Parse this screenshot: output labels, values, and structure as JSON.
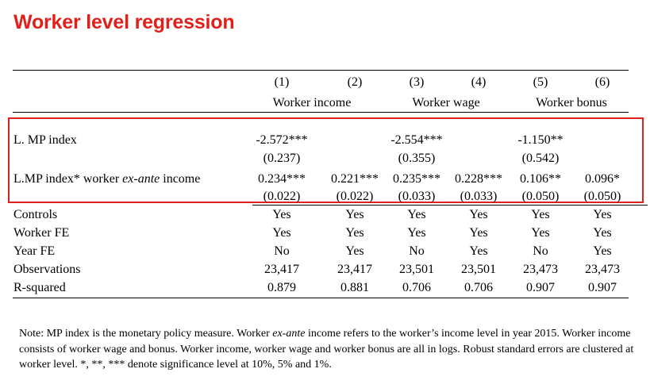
{
  "title": "Worker level regression",
  "columns": [
    "(1)",
    "(2)",
    "(3)",
    "(4)",
    "(5)",
    "(6)"
  ],
  "groups": [
    "Worker income",
    "Worker wage",
    "Worker bonus"
  ],
  "rows": {
    "mp_index": {
      "label": "L. MP index",
      "coefs": [
        "-2.572***",
        "",
        "-2.554***",
        "",
        "-1.150**",
        ""
      ],
      "ses": [
        "(0.237)",
        "",
        "(0.355)",
        "",
        "(0.542)",
        ""
      ]
    },
    "interaction": {
      "label_prefix": "L.MP index* worker ",
      "label_italic": "ex-ante",
      "label_suffix": " income",
      "coefs": [
        "0.234***",
        "0.221***",
        "0.235***",
        "0.228***",
        "0.106**",
        "0.096*"
      ],
      "ses": [
        "(0.022)",
        "(0.022)",
        "(0.033)",
        "(0.033)",
        "(0.050)",
        "(0.050)"
      ]
    },
    "controls": {
      "label": "Controls",
      "values": [
        "Yes",
        "Yes",
        "Yes",
        "Yes",
        "Yes",
        "Yes"
      ]
    },
    "worker_fe": {
      "label": "Worker FE",
      "values": [
        "Yes",
        "Yes",
        "Yes",
        "Yes",
        "Yes",
        "Yes"
      ]
    },
    "year_fe": {
      "label": "Year FE",
      "values": [
        "No",
        "Yes",
        "No",
        "Yes",
        "No",
        "Yes"
      ]
    },
    "observations": {
      "label": "Observations",
      "values": [
        "23,417",
        "23,417",
        "23,501",
        "23,501",
        "23,473",
        "23,473"
      ]
    },
    "rsquared": {
      "label": "R-squared",
      "values": [
        "0.879",
        "0.881",
        "0.706",
        "0.706",
        "0.907",
        "0.907"
      ]
    }
  },
  "note": {
    "p1": "Note: MP index is the monetary policy measure. Worker ",
    "italic": "ex-ante",
    "p2": " income refers to the worker’s income level in year 2015. Worker income consists of worker wage and bonus. Worker income, worker wage and worker bonus are all in logs. Robust standard errors are clustered at worker level. *, **, *** denote significance level at 10%, 5% and 1%."
  },
  "colors": {
    "title": "#e0201b",
    "highlight_box": "#e0201b"
  }
}
